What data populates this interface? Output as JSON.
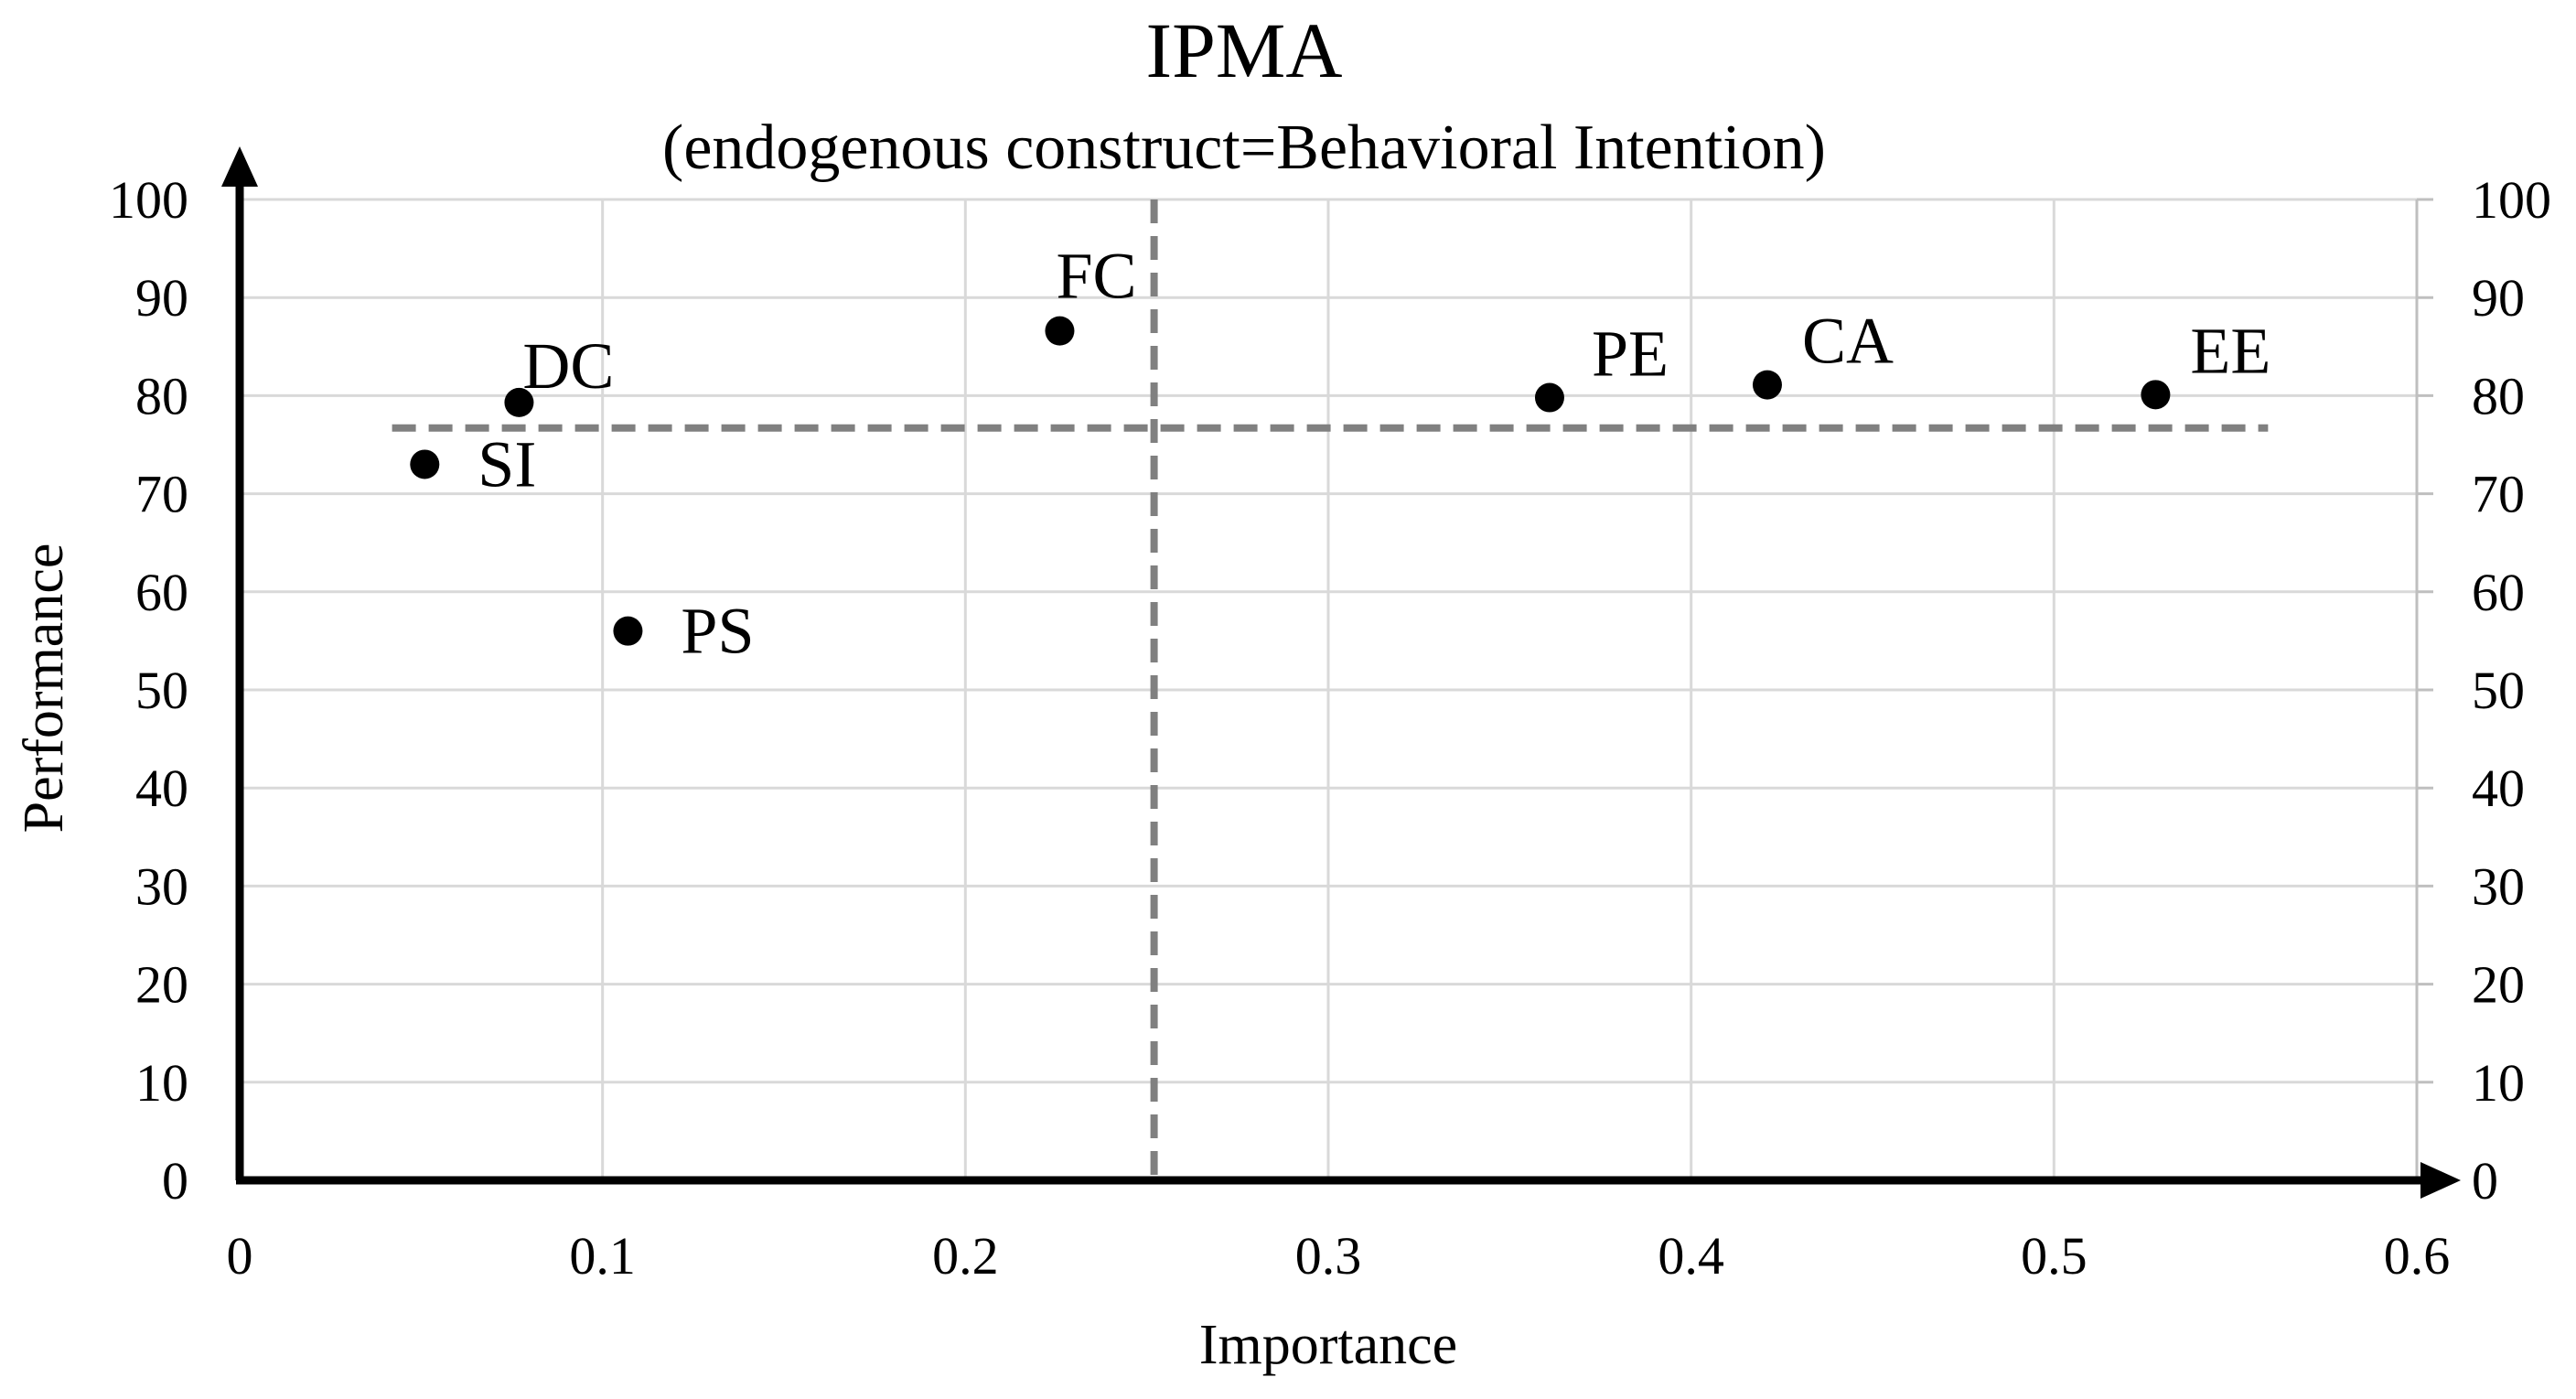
{
  "chart_data": {
    "type": "scatter",
    "title": "IPMA",
    "subtitle": "(endogenous construct=Behavioral Intention)",
    "xlabel": "Importance",
    "ylabel": "Performance",
    "xlim": [
      0,
      0.6
    ],
    "ylim": [
      0,
      100
    ],
    "x_ticks": [
      0,
      0.1,
      0.2,
      0.3,
      0.4,
      0.5,
      0.6
    ],
    "x_tick_labels": [
      "0",
      "0.1",
      "0.2",
      "0.3",
      "0.4",
      "0.5",
      "0.6"
    ],
    "y_ticks": [
      0,
      10,
      20,
      30,
      40,
      50,
      60,
      70,
      80,
      90,
      100
    ],
    "y_tick_labels": [
      "0",
      "10",
      "20",
      "30",
      "40",
      "50",
      "60",
      "70",
      "80",
      "90",
      "100"
    ],
    "secondary_y_axis": true,
    "grid": true,
    "points": [
      {
        "label": "SI",
        "x": 0.051,
        "y": 73.0
      },
      {
        "label": "DC",
        "x": 0.077,
        "y": 79.3
      },
      {
        "label": "PS",
        "x": 0.107,
        "y": 56.0
      },
      {
        "label": "FC",
        "x": 0.226,
        "y": 86.6
      },
      {
        "label": "PE",
        "x": 0.361,
        "y": 79.8
      },
      {
        "label": "CA",
        "x": 0.421,
        "y": 81.1
      },
      {
        "label": "EE",
        "x": 0.528,
        "y": 80.1
      }
    ],
    "reference_lines": {
      "mean_importance": 0.252,
      "mean_performance": 76.7,
      "horizontal_span": [
        0.042,
        0.559
      ]
    },
    "colors": {
      "points": "#000000",
      "axes": "#000000",
      "grid": "#d9d9d9",
      "reference": "#808080"
    }
  }
}
